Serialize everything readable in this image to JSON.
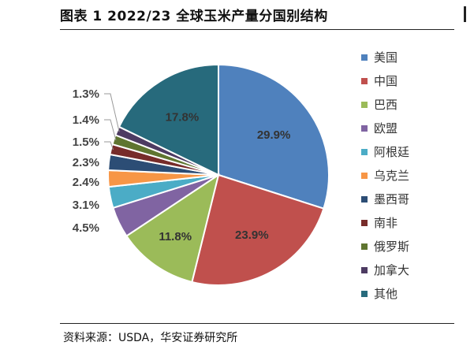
{
  "title": "图表 1 2022/23 全球玉米产量分国别结构",
  "source": "资料来源：USDA，华安证券研究所",
  "chart_data": {
    "type": "pie",
    "title": "图表 1 2022/23 全球玉米产量分国别结构",
    "legend_position": "right",
    "slices": [
      {
        "name": "美国",
        "value": 29.9,
        "label": "29.9%",
        "color": "#4F81BD"
      },
      {
        "name": "中国",
        "value": 23.9,
        "label": "23.9%",
        "color": "#C0504D"
      },
      {
        "name": "巴西",
        "value": 11.8,
        "label": "11.8%",
        "color": "#9BBB59"
      },
      {
        "name": "欧盟",
        "value": 4.5,
        "label": "4.5%",
        "color": "#8064A2"
      },
      {
        "name": "阿根廷",
        "value": 3.1,
        "label": "3.1%",
        "color": "#4BACC6"
      },
      {
        "name": "乌克兰",
        "value": 2.4,
        "label": "2.4%",
        "color": "#F79646"
      },
      {
        "name": "墨西哥",
        "value": 2.3,
        "label": "2.3%",
        "color": "#2C4D75"
      },
      {
        "name": "南非",
        "value": 1.5,
        "label": "1.5%",
        "color": "#772C2A"
      },
      {
        "name": "俄罗斯",
        "value": 1.4,
        "label": "1.4%",
        "color": "#5F7530"
      },
      {
        "name": "加拿大",
        "value": 1.3,
        "label": "1.3%",
        "color": "#4D3B62"
      },
      {
        "name": "其他",
        "value": 17.8,
        "label": "17.8%",
        "color": "#276A7C"
      }
    ]
  }
}
